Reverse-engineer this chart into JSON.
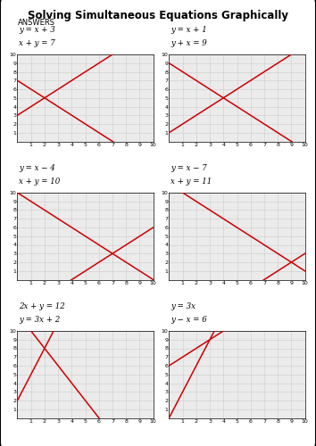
{
  "title": "Solving Simultaneous Equations Graphically",
  "subtitle": "ANSWERS",
  "plots": [
    {
      "label1": "y = x + 3",
      "label2": "x + y = 7",
      "line1_b": 3,
      "line1_m": 1,
      "line2_b": 7,
      "line2_m": -1
    },
    {
      "label1": "y = x + 1",
      "label2": "y + x = 9",
      "line1_b": 1,
      "line1_m": 1,
      "line2_b": 9,
      "line2_m": -1
    },
    {
      "label1": "y = x − 4",
      "label2": "x + y = 10",
      "line1_b": -4,
      "line1_m": 1,
      "line2_b": 10,
      "line2_m": -1
    },
    {
      "label1": "y = x − 7",
      "label2": "x + y = 11",
      "line1_b": -7,
      "line1_m": 1,
      "line2_b": 11,
      "line2_m": -1
    },
    {
      "label1": "2x + y = 12",
      "label2": "y = 3x + 2",
      "line1_b": 12,
      "line1_m": -2,
      "line2_b": 2,
      "line2_m": 3
    },
    {
      "label1": "y = 3x",
      "label2": "y − x = 6",
      "line1_b": 0,
      "line1_m": 3,
      "line2_b": 6,
      "line2_m": 1
    }
  ],
  "line_color": "#cc0000",
  "grid_color": "#cccccc",
  "bg_color": "#ebebeb",
  "title_fontsize": 8.5,
  "subtitle_fontsize": 6.0,
  "label_fontsize": 6.2,
  "tick_fontsize": 4.5
}
